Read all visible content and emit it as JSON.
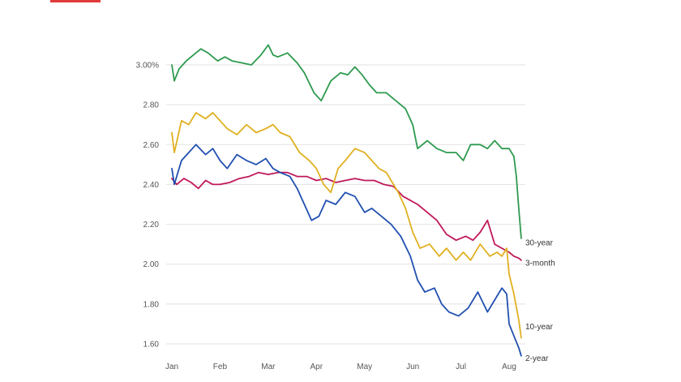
{
  "chart_data": {
    "type": "line",
    "title": "",
    "xlabel": "",
    "ylabel": "",
    "ylim": [
      1.55,
      3.12
    ],
    "grid": true,
    "legend": "end-of-line labels on right",
    "x_ticks": [
      "Jan",
      "Feb",
      "Mar",
      "Apr",
      "May",
      "Jun",
      "Jul",
      "Aug"
    ],
    "y_ticks": [
      {
        "value": 3.0,
        "label": "3.00%"
      },
      {
        "value": 2.8,
        "label": "2.80"
      },
      {
        "value": 2.6,
        "label": "2.60"
      },
      {
        "value": 2.4,
        "label": "2.40"
      },
      {
        "value": 2.2,
        "label": "2.20"
      },
      {
        "value": 2.0,
        "label": "2.00"
      },
      {
        "value": 1.8,
        "label": "1.80"
      },
      {
        "value": 1.6,
        "label": "1.60"
      }
    ],
    "series": [
      {
        "name": "30-year",
        "color": "#2e9a4f",
        "x": [
          0.0,
          0.05,
          0.15,
          0.3,
          0.45,
          0.6,
          0.75,
          0.95,
          1.1,
          1.25,
          1.45,
          1.65,
          1.85,
          2.0,
          2.1,
          2.2,
          2.4,
          2.6,
          2.75,
          2.95,
          3.1,
          3.3,
          3.5,
          3.65,
          3.8,
          3.95,
          4.1,
          4.25,
          4.45,
          4.6,
          4.85,
          5.0,
          5.1,
          5.3,
          5.5,
          5.7,
          5.9,
          6.05,
          6.2,
          6.4,
          6.55,
          6.7,
          6.85,
          7.0,
          7.1,
          7.15,
          7.2,
          7.25
        ],
        "values": [
          3.0,
          2.92,
          2.98,
          3.02,
          3.05,
          3.08,
          3.06,
          3.02,
          3.04,
          3.02,
          3.01,
          3.0,
          3.05,
          3.1,
          3.05,
          3.04,
          3.06,
          3.01,
          2.96,
          2.86,
          2.82,
          2.92,
          2.96,
          2.95,
          2.99,
          2.95,
          2.9,
          2.86,
          2.86,
          2.83,
          2.78,
          2.7,
          2.58,
          2.62,
          2.58,
          2.56,
          2.56,
          2.52,
          2.6,
          2.6,
          2.58,
          2.62,
          2.58,
          2.58,
          2.54,
          2.44,
          2.28,
          2.13
        ]
      },
      {
        "name": "3-month",
        "color": "#c0185a",
        "x": [
          0.0,
          0.1,
          0.25,
          0.4,
          0.55,
          0.7,
          0.85,
          1.0,
          1.2,
          1.4,
          1.6,
          1.8,
          2.0,
          2.2,
          2.4,
          2.6,
          2.8,
          3.0,
          3.2,
          3.4,
          3.6,
          3.8,
          4.0,
          4.2,
          4.4,
          4.6,
          4.8,
          4.95,
          5.1,
          5.3,
          5.5,
          5.7,
          5.9,
          6.1,
          6.25,
          6.4,
          6.55,
          6.7,
          6.85,
          7.0,
          7.1,
          7.2,
          7.25
        ],
        "values": [
          2.43,
          2.4,
          2.43,
          2.41,
          2.38,
          2.42,
          2.4,
          2.4,
          2.41,
          2.43,
          2.44,
          2.46,
          2.45,
          2.46,
          2.46,
          2.44,
          2.44,
          2.42,
          2.43,
          2.41,
          2.42,
          2.43,
          2.42,
          2.42,
          2.4,
          2.39,
          2.34,
          2.32,
          2.3,
          2.26,
          2.22,
          2.15,
          2.12,
          2.14,
          2.12,
          2.16,
          2.22,
          2.1,
          2.08,
          2.06,
          2.04,
          2.03,
          2.02
        ]
      },
      {
        "name": "10-year",
        "color": "#e0b020",
        "x": [
          0.0,
          0.05,
          0.2,
          0.35,
          0.5,
          0.7,
          0.85,
          1.0,
          1.15,
          1.35,
          1.55,
          1.75,
          1.95,
          2.1,
          2.25,
          2.45,
          2.65,
          2.85,
          3.0,
          3.15,
          3.3,
          3.45,
          3.6,
          3.8,
          4.0,
          4.15,
          4.3,
          4.45,
          4.55,
          4.7,
          4.85,
          5.0,
          5.15,
          5.35,
          5.55,
          5.7,
          5.9,
          6.05,
          6.2,
          6.4,
          6.6,
          6.75,
          6.85,
          6.95,
          7.0,
          7.1,
          7.2,
          7.25
        ],
        "values": [
          2.66,
          2.56,
          2.72,
          2.7,
          2.76,
          2.73,
          2.76,
          2.72,
          2.68,
          2.65,
          2.7,
          2.66,
          2.68,
          2.7,
          2.66,
          2.64,
          2.56,
          2.52,
          2.48,
          2.4,
          2.36,
          2.48,
          2.52,
          2.58,
          2.56,
          2.52,
          2.48,
          2.46,
          2.42,
          2.36,
          2.28,
          2.16,
          2.08,
          2.1,
          2.04,
          2.08,
          2.02,
          2.06,
          2.02,
          2.1,
          2.04,
          2.06,
          2.04,
          2.08,
          1.95,
          1.85,
          1.72,
          1.63
        ]
      },
      {
        "name": "2-year",
        "color": "#2150b0",
        "x": [
          0.0,
          0.05,
          0.2,
          0.35,
          0.5,
          0.7,
          0.85,
          1.0,
          1.15,
          1.35,
          1.55,
          1.75,
          1.95,
          2.1,
          2.25,
          2.45,
          2.6,
          2.75,
          2.9,
          3.05,
          3.2,
          3.4,
          3.6,
          3.8,
          4.0,
          4.15,
          4.35,
          4.55,
          4.75,
          4.95,
          5.1,
          5.25,
          5.45,
          5.6,
          5.75,
          5.95,
          6.15,
          6.35,
          6.55,
          6.75,
          6.85,
          6.95,
          7.0,
          7.1,
          7.2,
          7.25
        ],
        "values": [
          2.48,
          2.4,
          2.52,
          2.56,
          2.6,
          2.55,
          2.58,
          2.52,
          2.48,
          2.55,
          2.52,
          2.5,
          2.53,
          2.48,
          2.46,
          2.44,
          2.38,
          2.3,
          2.22,
          2.24,
          2.32,
          2.3,
          2.36,
          2.34,
          2.26,
          2.28,
          2.24,
          2.2,
          2.14,
          2.04,
          1.92,
          1.86,
          1.88,
          1.8,
          1.76,
          1.74,
          1.78,
          1.86,
          1.76,
          1.84,
          1.88,
          1.85,
          1.7,
          1.64,
          1.58,
          1.54
        ]
      }
    ]
  }
}
